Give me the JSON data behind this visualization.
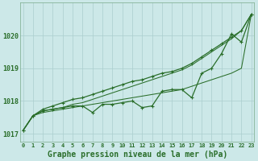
{
  "title": "Graphe pression niveau de la mer (hPa)",
  "hours": [
    0,
    1,
    2,
    3,
    4,
    5,
    6,
    7,
    8,
    9,
    10,
    11,
    12,
    13,
    14,
    15,
    16,
    17,
    18,
    19,
    20,
    21,
    22,
    23
  ],
  "x_labels": [
    "0",
    "1",
    "2",
    "3",
    "4",
    "5",
    "6",
    "7",
    "8",
    "9",
    "10",
    "11",
    "12",
    "13",
    "14",
    "15",
    "16",
    "17",
    "18",
    "19",
    "20",
    "21",
    "22",
    "23"
  ],
  "pressure_actual": [
    1017.1,
    1017.55,
    1017.7,
    1017.75,
    1017.8,
    1017.85,
    1017.85,
    1017.65,
    1017.9,
    1017.9,
    1017.95,
    1018.0,
    1017.8,
    1017.85,
    1018.3,
    1018.35,
    1018.35,
    1018.1,
    1018.85,
    1019.0,
    1019.45,
    1020.05,
    1019.8,
    1020.65
  ],
  "pressure_upper": [
    1017.1,
    1017.55,
    1017.75,
    1017.85,
    1017.95,
    1018.05,
    1018.1,
    1018.2,
    1018.3,
    1018.4,
    1018.5,
    1018.6,
    1018.65,
    1018.75,
    1018.85,
    1018.9,
    1019.0,
    1019.15,
    1019.35,
    1019.55,
    1019.75,
    1019.95,
    1020.15,
    1020.65
  ],
  "trend_low": [
    1017.1,
    1017.55,
    1017.65,
    1017.7,
    1017.75,
    1017.8,
    1017.85,
    1017.9,
    1017.95,
    1018.0,
    1018.05,
    1018.1,
    1018.15,
    1018.2,
    1018.25,
    1018.3,
    1018.35,
    1018.45,
    1018.55,
    1018.65,
    1018.75,
    1018.85,
    1019.0,
    1020.65
  ],
  "trend_high": [
    1017.1,
    1017.55,
    1017.7,
    1017.75,
    1017.8,
    1017.9,
    1017.95,
    1018.05,
    1018.15,
    1018.25,
    1018.35,
    1018.45,
    1018.55,
    1018.65,
    1018.75,
    1018.85,
    1018.95,
    1019.1,
    1019.3,
    1019.5,
    1019.7,
    1019.9,
    1020.15,
    1020.65
  ],
  "ylim": [
    1016.75,
    1021.0
  ],
  "yticks": [
    1017,
    1018,
    1019,
    1020
  ],
  "xlim": [
    -0.3,
    23.3
  ],
  "line_color": "#2a6e2a",
  "bg_color": "#cce8e8",
  "grid_color": "#aacece",
  "title_color": "#2a6e2a",
  "title_fontsize": 7.0,
  "marker": "P",
  "marker_size": 2.8,
  "linewidth_data": 0.9,
  "linewidth_trend": 0.75
}
